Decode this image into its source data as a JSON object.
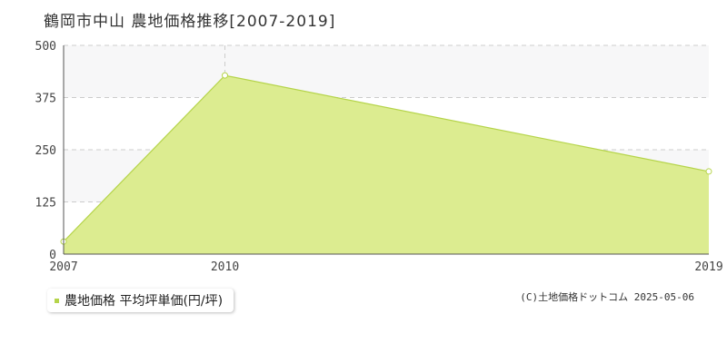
{
  "title": "鶴岡市中山 農地価格推移[2007-2019]",
  "legend_label": "農地価格 平均坪単価(円/坪)",
  "copyright": "(C)土地価格ドットコム 2025-05-06",
  "colors": {
    "area_fill": "#dcec90",
    "area_line": "#b5d44a",
    "band": "#f7f7f8",
    "grid": "#cccccc"
  },
  "chart_data": {
    "type": "area",
    "title": "鶴岡市中山 農地価格推移[2007-2019]",
    "x": [
      2007,
      2010,
      2019
    ],
    "xlim": [
      2007,
      2019
    ],
    "x_ticks": [
      "2007",
      "2010",
      "2019"
    ],
    "ylim": [
      0,
      500
    ],
    "y_ticks": [
      "0",
      "125",
      "250",
      "375",
      "500"
    ],
    "series": [
      {
        "name": "農地価格 平均坪単価(円/坪)",
        "values": [
          30,
          428,
          198
        ]
      }
    ],
    "grid": true,
    "legend": "bottom-left"
  }
}
